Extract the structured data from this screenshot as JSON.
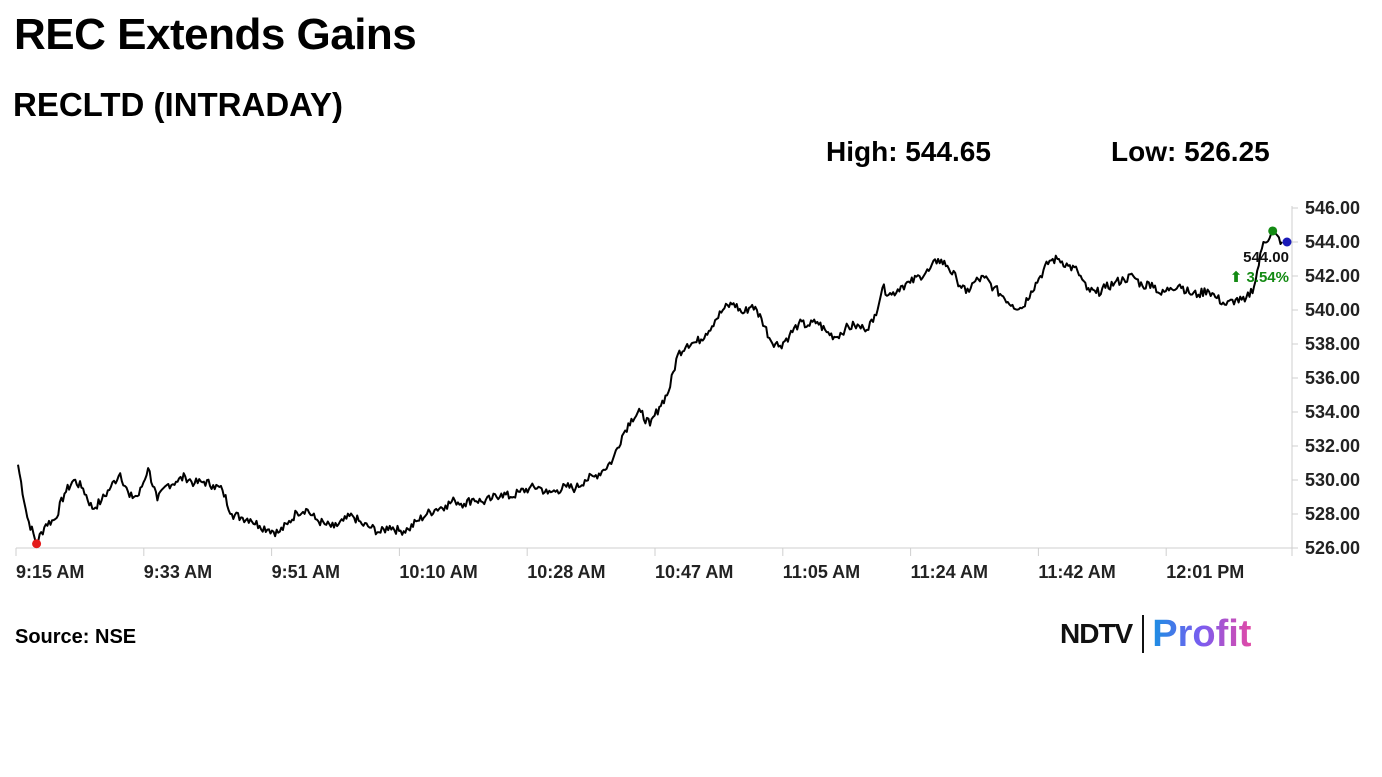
{
  "header": {
    "title": "REC Extends Gains",
    "subtitle": "RECLTD (INTRADAY)",
    "high_text": "High: 544.65",
    "low_text": "Low: 526.25"
  },
  "footer": {
    "source": "Source: NSE",
    "logo_left": "NDTV",
    "logo_right": "Profit"
  },
  "colors": {
    "line": "#000000",
    "low_marker": "#e31b1b",
    "high_marker": "#138a13",
    "last_marker": "#1a1ab8",
    "change_up": "#138a13"
  },
  "chart_data": {
    "type": "line",
    "title": "RECLTD (INTRADAY)",
    "xlabel": "",
    "ylabel": "",
    "ylim": [
      526,
      546
    ],
    "grid": false,
    "y_ticks": [
      "546.00",
      "544.00",
      "542.00",
      "540.00",
      "538.00",
      "536.00",
      "534.00",
      "532.00",
      "530.00",
      "528.00",
      "526.00"
    ],
    "x_ticks": [
      "9:15 AM",
      "9:33 AM",
      "9:51 AM",
      "10:10 AM",
      "10:28 AM",
      "10:47 AM",
      "11:05 AM",
      "11:24 AM",
      "11:42 AM",
      "12:01 PM"
    ],
    "last_value_label": "544.00",
    "change_label": "⬆ 3.54%",
    "high": 544.65,
    "low": 526.25,
    "series": [
      {
        "values": [
          [
            0,
            530.9
          ],
          [
            1,
            527.8
          ],
          [
            2,
            526.3
          ],
          [
            3,
            527.4
          ],
          [
            4,
            527.7
          ],
          [
            5,
            529.2
          ],
          [
            6,
            530.0
          ],
          [
            7,
            529.5
          ],
          [
            8,
            528.3
          ],
          [
            9,
            528.8
          ],
          [
            10,
            529.6
          ],
          [
            11,
            530.4
          ],
          [
            12,
            529.0
          ],
          [
            13,
            529.1
          ],
          [
            14,
            530.7
          ],
          [
            15,
            528.8
          ],
          [
            16,
            529.7
          ],
          [
            17,
            529.9
          ],
          [
            18,
            530.2
          ],
          [
            19,
            529.8
          ],
          [
            20,
            529.9
          ],
          [
            21,
            529.7
          ],
          [
            22,
            529.4
          ],
          [
            23,
            528.0
          ],
          [
            24,
            527.8
          ],
          [
            25,
            527.7
          ],
          [
            26,
            527.3
          ],
          [
            27,
            527.1
          ],
          [
            28,
            526.9
          ],
          [
            29,
            527.4
          ],
          [
            30,
            528.1
          ],
          [
            31,
            528.3
          ],
          [
            32,
            527.7
          ],
          [
            33,
            527.4
          ],
          [
            34,
            527.2
          ],
          [
            35,
            527.6
          ],
          [
            36,
            527.9
          ],
          [
            37,
            527.4
          ],
          [
            38,
            527.2
          ],
          [
            39,
            526.9
          ],
          [
            40,
            527.3
          ],
          [
            41,
            527.0
          ],
          [
            42,
            527.1
          ],
          [
            43,
            527.6
          ],
          [
            44,
            528.0
          ],
          [
            45,
            528.3
          ],
          [
            46,
            528.5
          ],
          [
            47,
            528.8
          ],
          [
            48,
            528.6
          ],
          [
            49,
            528.9
          ],
          [
            50,
            528.7
          ],
          [
            51,
            528.9
          ],
          [
            52,
            529.2
          ],
          [
            53,
            529.0
          ],
          [
            54,
            529.3
          ],
          [
            55,
            529.5
          ],
          [
            56,
            529.6
          ],
          [
            57,
            529.2
          ],
          [
            58,
            529.4
          ],
          [
            59,
            529.6
          ],
          [
            60,
            529.5
          ],
          [
            61,
            530.0
          ],
          [
            62,
            530.2
          ],
          [
            63,
            530.6
          ],
          [
            64,
            531.2
          ],
          [
            65,
            532.6
          ],
          [
            66,
            533.6
          ],
          [
            67,
            534.0
          ],
          [
            68,
            533.2
          ],
          [
            69,
            534.3
          ],
          [
            70,
            535.2
          ],
          [
            71,
            537.4
          ],
          [
            72,
            538.0
          ],
          [
            73,
            538.1
          ],
          [
            74,
            538.6
          ],
          [
            75,
            539.4
          ],
          [
            76,
            540.1
          ],
          [
            77,
            540.4
          ],
          [
            78,
            539.8
          ],
          [
            79,
            540.3
          ],
          [
            80,
            539.5
          ],
          [
            81,
            538.2
          ],
          [
            82,
            537.9
          ],
          [
            83,
            538.5
          ],
          [
            84,
            539.2
          ],
          [
            85,
            539.1
          ],
          [
            86,
            539.3
          ],
          [
            87,
            538.7
          ],
          [
            88,
            538.4
          ],
          [
            89,
            538.9
          ],
          [
            90,
            539.1
          ],
          [
            91,
            538.9
          ],
          [
            92,
            539.3
          ],
          [
            93,
            541.3
          ],
          [
            94,
            540.9
          ],
          [
            95,
            541.4
          ],
          [
            96,
            541.6
          ],
          [
            97,
            542.0
          ],
          [
            98,
            542.3
          ],
          [
            99,
            543.0
          ],
          [
            100,
            542.6
          ],
          [
            101,
            541.8
          ],
          [
            102,
            541.0
          ],
          [
            103,
            541.7
          ],
          [
            104,
            541.9
          ],
          [
            105,
            541.3
          ],
          [
            106,
            540.8
          ],
          [
            107,
            540.3
          ],
          [
            108,
            540.1
          ],
          [
            109,
            541.1
          ],
          [
            110,
            542.0
          ],
          [
            111,
            542.9
          ],
          [
            112,
            543.0
          ],
          [
            113,
            542.6
          ],
          [
            114,
            542.3
          ],
          [
            115,
            541.2
          ],
          [
            116,
            541.0
          ],
          [
            117,
            541.3
          ],
          [
            118,
            541.6
          ],
          [
            119,
            541.8
          ],
          [
            120,
            542.0
          ],
          [
            121,
            541.4
          ],
          [
            122,
            541.6
          ],
          [
            123,
            540.9
          ],
          [
            124,
            541.3
          ],
          [
            125,
            541.5
          ],
          [
            126,
            541.0
          ],
          [
            127,
            540.9
          ],
          [
            128,
            541.2
          ],
          [
            129,
            540.7
          ],
          [
            130,
            540.3
          ],
          [
            131,
            540.6
          ],
          [
            132,
            540.5
          ],
          [
            133,
            541.4
          ],
          [
            134,
            544.0
          ],
          [
            135,
            544.5
          ],
          [
            136,
            544.0
          ]
        ]
      }
    ]
  }
}
